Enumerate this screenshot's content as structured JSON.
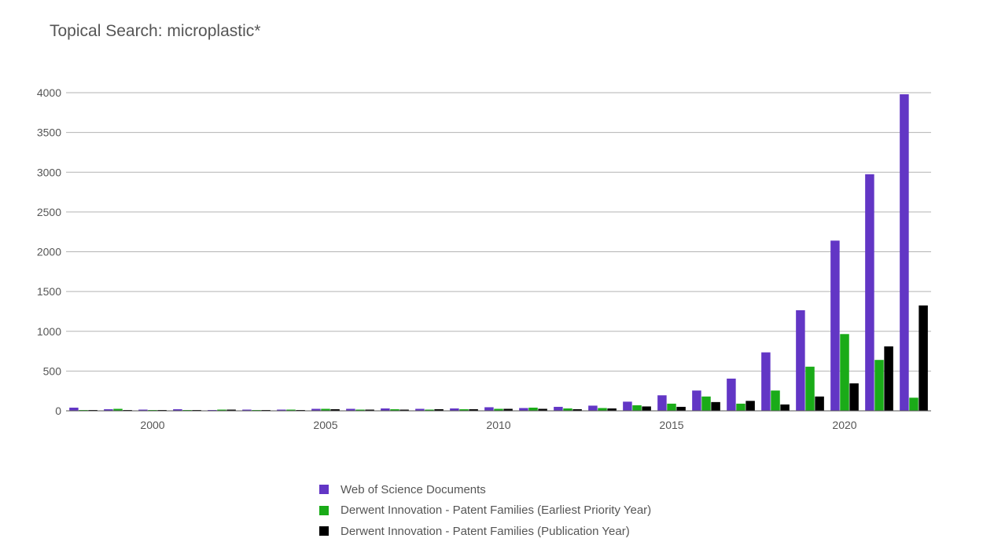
{
  "chart_data": {
    "type": "bar",
    "title": "Topical Search: microplastic*",
    "xlabel": "",
    "ylabel": "",
    "years": [
      1998,
      1999,
      2000,
      2001,
      2002,
      2003,
      2004,
      2005,
      2006,
      2007,
      2008,
      2009,
      2010,
      2011,
      2012,
      2013,
      2014,
      2015,
      2016,
      2017,
      2018,
      2019,
      2020,
      2021,
      2022
    ],
    "x_ticks": [
      2000,
      2005,
      2010,
      2015,
      2020
    ],
    "y_ticks": [
      0,
      500,
      1000,
      1500,
      2000,
      2500,
      3000,
      3500,
      4000
    ],
    "ylim": [
      0,
      4000
    ],
    "grid": true,
    "legend_position": "bottom-center",
    "series": [
      {
        "name": "Web of Science Documents",
        "color": "#6236c5",
        "values": [
          40,
          20,
          15,
          20,
          10,
          15,
          15,
          25,
          25,
          30,
          25,
          30,
          45,
          35,
          50,
          65,
          115,
          195,
          255,
          405,
          735,
          1265,
          2140,
          2975,
          3980
        ]
      },
      {
        "name": "Derwent Innovation - Patent Families (Earliest Priority Year)",
        "color": "#1aab18",
        "values": [
          10,
          25,
          10,
          10,
          15,
          10,
          15,
          25,
          15,
          20,
          15,
          20,
          25,
          40,
          30,
          35,
          70,
          90,
          180,
          90,
          255,
          555,
          965,
          640,
          165
        ]
      },
      {
        "name": "Derwent Innovation - Patent Families (Publication Year)",
        "color": "#000000",
        "values": [
          10,
          10,
          10,
          10,
          15,
          10,
          10,
          20,
          15,
          15,
          20,
          20,
          25,
          25,
          20,
          30,
          55,
          50,
          110,
          125,
          80,
          180,
          345,
          810,
          1325
        ]
      }
    ]
  }
}
